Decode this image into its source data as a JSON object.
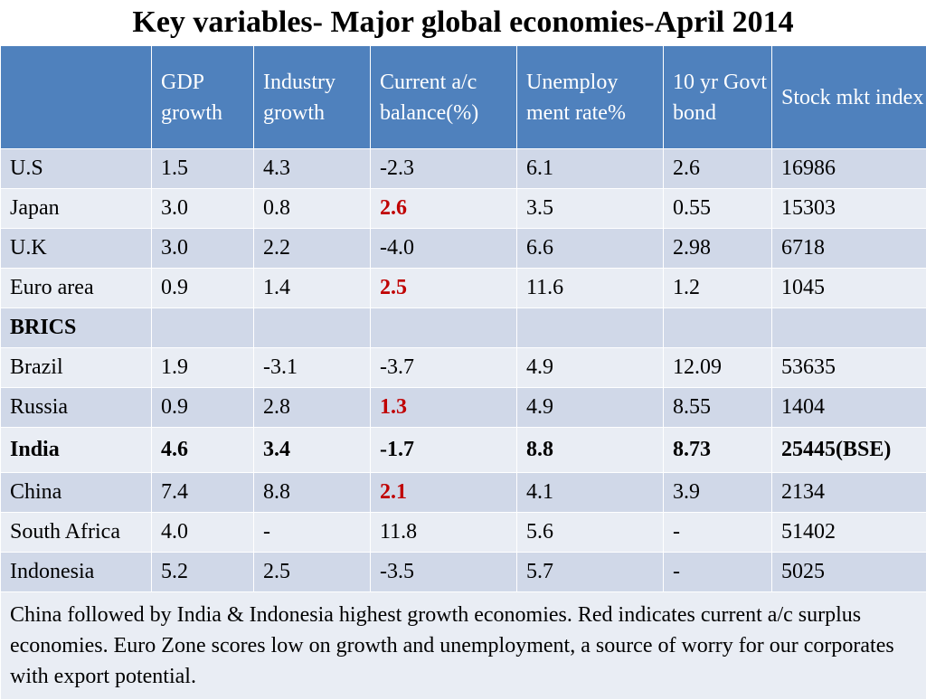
{
  "title": "Key variables- Major global economies-April 2014",
  "columns": [
    "",
    "GDP growth",
    "Industry growth",
    "Current a/c balance(%)",
    "Unemploy ment rate%",
    "10 yr Govt bond",
    "Stock mkt index"
  ],
  "rows": [
    {
      "country": "U.S",
      "gdp": "1.5",
      "industry": "4.3",
      "current_ac": "-2.3",
      "unemployment": "6.1",
      "bond": "2.6",
      "stock": "16986"
    },
    {
      "country": "Japan",
      "gdp": "3.0",
      "industry": "0.8",
      "current_ac": "2.6",
      "unemployment": "3.5",
      "bond": "0.55",
      "stock": "15303"
    },
    {
      "country": "U.K",
      "gdp": "3.0",
      "industry": "2.2",
      "current_ac": "-4.0",
      "unemployment": "6.6",
      "bond": "2.98",
      "stock": "6718"
    },
    {
      "country": "Euro area",
      "gdp": "0.9",
      "industry": "1.4",
      "current_ac": "2.5",
      "unemployment": "11.6",
      "bond": "1.2",
      "stock": "1045"
    },
    {
      "country": "BRICS",
      "gdp": "",
      "industry": "",
      "current_ac": "",
      "unemployment": "",
      "bond": "",
      "stock": ""
    },
    {
      "country": "Brazil",
      "gdp": "1.9",
      "industry": "-3.1",
      "current_ac": "-3.7",
      "unemployment": "4.9",
      "bond": "12.09",
      "stock": "53635"
    },
    {
      "country": "Russia",
      "gdp": "0.9",
      "industry": "2.8",
      "current_ac": "1.3",
      "unemployment": "4.9",
      "bond": "8.55",
      "stock": "1404"
    },
    {
      "country": "India",
      "gdp": "4.6",
      "industry": "3.4",
      "current_ac": "-1.7",
      "unemployment": "8.8",
      "bond": "8.73",
      "stock": "25445(BSE)"
    },
    {
      "country": "China",
      "gdp": "7.4",
      "industry": "8.8",
      "current_ac": "2.1",
      "unemployment": "4.1",
      "bond": "3.9",
      "stock": "2134"
    },
    {
      "country": "South Africa",
      "gdp": "4.0",
      "industry": "-",
      "current_ac": "11.8",
      "unemployment": "5.6",
      "bond": "-",
      "stock": "51402"
    },
    {
      "country": "Indonesia",
      "gdp": "5.2",
      "industry": "2.5",
      "current_ac": "-3.5",
      "unemployment": "5.7",
      "bond": "-",
      "stock": "5025"
    }
  ],
  "note": "China followed by India & Indonesia highest growth economies. Red indicates current a/c surplus economies. Euro Zone scores low on growth and unemployment, a source of worry for our corporates with export potential.",
  "colors": {
    "header_bg": "#4f81bd",
    "row_dark": "#d0d8e8",
    "row_light": "#e9edf4",
    "surplus": "#c00000"
  }
}
